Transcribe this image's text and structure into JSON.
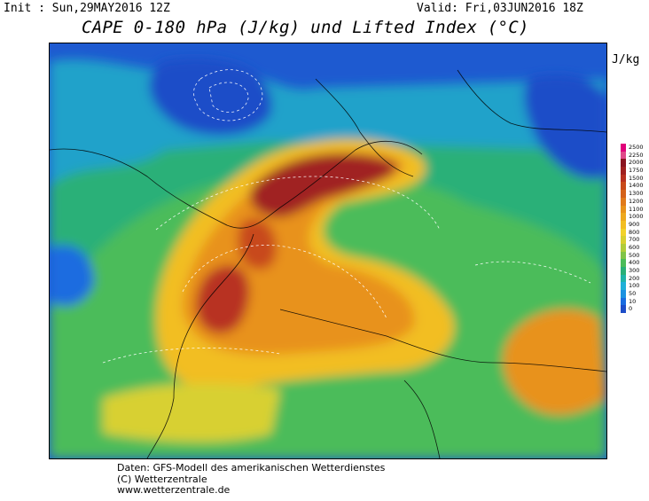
{
  "header": {
    "init": "Init : Sun,29MAY2016 12Z",
    "valid": "Valid: Fri,03JUN2016 18Z",
    "title": "CAPE 0-180 hPa (J/kg) und Lifted Index (°C)"
  },
  "legend": {
    "unit": "J/kg",
    "levels": [
      {
        "label": "2500",
        "color": "#e0007a"
      },
      {
        "label": "2250",
        "color": "#e04a8a"
      },
      {
        "label": "2000",
        "color": "#8a1420"
      },
      {
        "label": "1750",
        "color": "#a02020"
      },
      {
        "label": "1500",
        "color": "#b83020"
      },
      {
        "label": "1400",
        "color": "#c84a1a"
      },
      {
        "label": "1300",
        "color": "#d4621a"
      },
      {
        "label": "1200",
        "color": "#e07a1a"
      },
      {
        "label": "1100",
        "color": "#e8921a"
      },
      {
        "label": "1000",
        "color": "#eda81e"
      },
      {
        "label": "900",
        "color": "#f2be22"
      },
      {
        "label": "800",
        "color": "#f2d22a"
      },
      {
        "label": "700",
        "color": "#d8d030"
      },
      {
        "label": "600",
        "color": "#b0cc3a"
      },
      {
        "label": "500",
        "color": "#80c448"
      },
      {
        "label": "400",
        "color": "#4cbc5a"
      },
      {
        "label": "300",
        "color": "#2ab078"
      },
      {
        "label": "200",
        "color": "#20b4a8"
      },
      {
        "label": "100",
        "color": "#20b0d8"
      },
      {
        "label": "50",
        "color": "#1c92e0"
      },
      {
        "label": "10",
        "color": "#1a6ce0"
      },
      {
        "label": "0",
        "color": "#1e4ec8"
      }
    ]
  },
  "map": {
    "name": "europe-cape-lifted-index-map"
  },
  "footer": {
    "line1": "Daten: GFS-Modell des amerikanischen Wetterdienstes",
    "line2": "(C) Wetterzentrale",
    "line3": "www.wetterzentrale.de"
  }
}
